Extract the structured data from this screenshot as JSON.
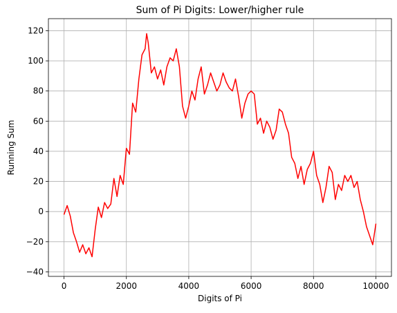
{
  "chart_data": {
    "type": "line",
    "title": "Sum of Pi Digits: Lower/higher rule",
    "xlabel": "Digits of Pi",
    "ylabel": "Running Sum",
    "xlim": [
      -500,
      10500
    ],
    "ylim": [
      -43,
      128
    ],
    "xticks": [
      0,
      2000,
      4000,
      6000,
      8000,
      10000
    ],
    "xtick_labels": [
      "0",
      "2000",
      "4000",
      "6000",
      "8000",
      "10000"
    ],
    "yticks": [
      -40,
      -20,
      0,
      20,
      40,
      60,
      80,
      100,
      120
    ],
    "ytick_labels": [
      "−40",
      "−20",
      "0",
      "20",
      "40",
      "60",
      "80",
      "100",
      "120"
    ],
    "grid": true,
    "series": [
      {
        "color": "#ff0000",
        "x": [
          0,
          100,
          200,
          300,
          400,
          500,
          600,
          700,
          800,
          900,
          1000,
          1100,
          1200,
          1300,
          1400,
          1500,
          1600,
          1700,
          1800,
          1900,
          2000,
          2100,
          2200,
          2300,
          2400,
          2500,
          2600,
          2650,
          2700,
          2800,
          2900,
          3000,
          3100,
          3200,
          3300,
          3400,
          3500,
          3600,
          3700,
          3800,
          3900,
          4000,
          4100,
          4200,
          4300,
          4400,
          4500,
          4600,
          4700,
          4800,
          4900,
          5000,
          5100,
          5200,
          5300,
          5400,
          5500,
          5600,
          5700,
          5800,
          5900,
          6000,
          6100,
          6200,
          6300,
          6400,
          6500,
          6600,
          6700,
          6800,
          6900,
          7000,
          7100,
          7200,
          7300,
          7400,
          7500,
          7600,
          7700,
          7800,
          7900,
          8000,
          8100,
          8200,
          8300,
          8400,
          8500,
          8600,
          8700,
          8800,
          8900,
          9000,
          9100,
          9200,
          9300,
          9400,
          9500,
          9600,
          9700,
          9800,
          9900,
          10000
        ],
        "y": [
          -2,
          4,
          -3,
          -14,
          -20,
          -27,
          -22,
          -28,
          -24,
          -30,
          -12,
          3,
          -4,
          6,
          2,
          5,
          22,
          10,
          24,
          18,
          42,
          38,
          72,
          66,
          88,
          104,
          108,
          118,
          112,
          92,
          96,
          88,
          94,
          84,
          96,
          102,
          100,
          108,
          96,
          70,
          62,
          70,
          80,
          74,
          88,
          96,
          78,
          84,
          92,
          86,
          80,
          84,
          92,
          86,
          82,
          80,
          88,
          76,
          62,
          72,
          78,
          80,
          78,
          58,
          62,
          52,
          60,
          56,
          48,
          54,
          68,
          66,
          58,
          52,
          36,
          32,
          22,
          30,
          18,
          28,
          32,
          40,
          24,
          18,
          6,
          16,
          30,
          26,
          8,
          18,
          14,
          24,
          20,
          24,
          16,
          20,
          8,
          0,
          -10,
          -16,
          -22,
          -8
        ]
      }
    ]
  }
}
